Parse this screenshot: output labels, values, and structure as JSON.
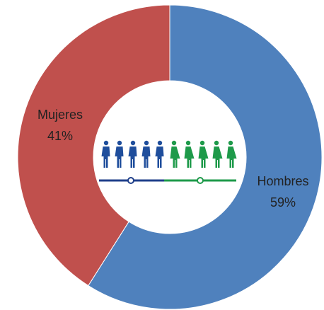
{
  "chart_data": {
    "type": "donut",
    "categories": [
      "Hombres",
      "Mujeres"
    ],
    "values": [
      59,
      41
    ],
    "value_labels": [
      "59%",
      "41%"
    ],
    "colors": [
      "#4f81bd",
      "#c0504d"
    ]
  }
}
